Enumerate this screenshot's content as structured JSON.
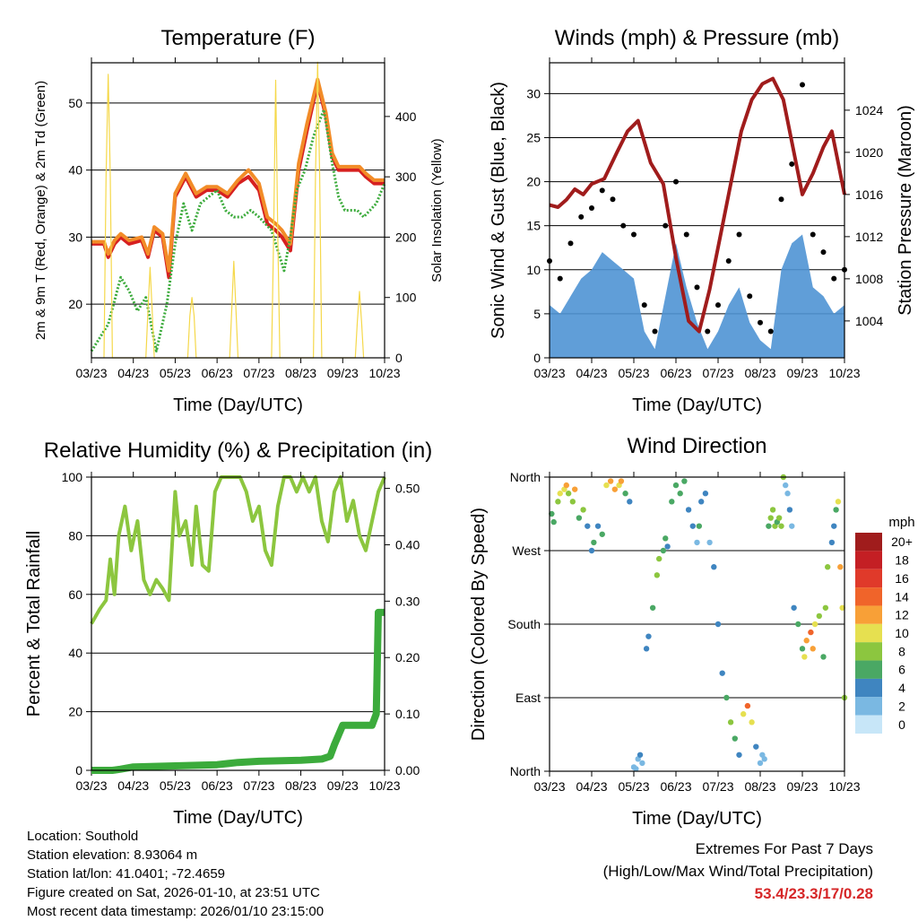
{
  "chart_data": [
    {
      "type": "line",
      "title": "Temperature (F)",
      "xlabel": "Time (Day/UTC)",
      "ylabel": "2m & 9m T (Red, Orange) & 2m Td (Green)",
      "y2label": "Solar Insolation (Yellow)",
      "ylim": [
        12,
        56
      ],
      "y2lim": [
        0,
        489
      ],
      "yticks": [
        20,
        30,
        40,
        50
      ],
      "y2ticks": [
        0,
        100,
        200,
        300,
        400
      ],
      "xlim": [
        0,
        7
      ],
      "xticks": [
        "03/23",
        "04/23",
        "05/23",
        "06/23",
        "07/23",
        "08/23",
        "09/23",
        "10/23"
      ],
      "grid": true,
      "series": [
        {
          "name": "2m T",
          "color": "#d62020",
          "x": [
            0,
            0.3,
            0.4,
            0.55,
            0.7,
            0.9,
            1.2,
            1.35,
            1.5,
            1.7,
            1.85,
            2.0,
            2.25,
            2.5,
            2.75,
            3.0,
            3.25,
            3.5,
            3.75,
            4.0,
            4.2,
            4.4,
            4.55,
            4.75,
            4.95,
            5.15,
            5.4,
            5.6,
            5.75,
            5.9,
            6.05,
            6.25,
            6.4,
            6.55,
            6.75,
            6.9,
            7.0
          ],
          "y": [
            29,
            29,
            27,
            29,
            30,
            29,
            29.5,
            27,
            31,
            30,
            24,
            36,
            39,
            36,
            37,
            37,
            36,
            38,
            39,
            37,
            32,
            31,
            30,
            28,
            40,
            46,
            53,
            48,
            42,
            40,
            40,
            40,
            40,
            39,
            38,
            38,
            38
          ]
        },
        {
          "name": "9m T",
          "color": "#f28c28",
          "x": [
            0,
            0.3,
            0.4,
            0.55,
            0.7,
            0.9,
            1.2,
            1.35,
            1.5,
            1.7,
            1.85,
            2.0,
            2.25,
            2.5,
            2.75,
            3.0,
            3.25,
            3.5,
            3.75,
            4.0,
            4.2,
            4.4,
            4.55,
            4.75,
            4.95,
            5.15,
            5.4,
            5.6,
            5.75,
            5.9,
            6.05,
            6.25,
            6.4,
            6.55,
            6.75,
            6.9,
            7.0
          ],
          "y": [
            29.3,
            29.3,
            27.5,
            29.5,
            30.5,
            29.5,
            30,
            27.5,
            31.5,
            30.5,
            25,
            36.5,
            39.5,
            36.5,
            37.5,
            37.5,
            36.5,
            38.5,
            40,
            38,
            33,
            32,
            31,
            29,
            41,
            47,
            53.5,
            48.5,
            42.5,
            40.5,
            40.5,
            40.5,
            40.5,
            39.5,
            38.5,
            38.5,
            38.5
          ]
        },
        {
          "name": "2m Td",
          "color": "#3cab3c",
          "x": [
            0,
            0.4,
            0.7,
            0.9,
            1.1,
            1.3,
            1.55,
            1.8,
            2.0,
            2.2,
            2.4,
            2.6,
            2.8,
            3.0,
            3.2,
            3.4,
            3.6,
            3.8,
            4.0,
            4.3,
            4.6,
            4.75,
            4.9,
            5.1,
            5.3,
            5.55,
            5.75,
            5.9,
            6.05,
            6.2,
            6.35,
            6.5,
            6.65,
            6.8,
            7.0
          ],
          "y": [
            13,
            17,
            24,
            22,
            19,
            21,
            13,
            20,
            29,
            35,
            31,
            35,
            36,
            37,
            34,
            33,
            33,
            34,
            33,
            31,
            25,
            30,
            37,
            40,
            45,
            49,
            41,
            36,
            34,
            34,
            34,
            33,
            34,
            35,
            38
          ]
        },
        {
          "name": "Solar Insolation",
          "color": "#f5d84a",
          "axis": "right",
          "x": [
            0.3,
            0.35,
            0.4,
            0.45,
            0.5,
            1.3,
            1.35,
            1.4,
            1.45,
            1.5,
            2.3,
            2.35,
            2.4,
            2.45,
            2.5,
            3.3,
            3.35,
            3.4,
            3.45,
            3.5,
            4.3,
            4.35,
            4.4,
            4.45,
            4.5,
            5.3,
            5.35,
            5.4,
            5.45,
            5.5,
            6.3,
            6.35,
            6.4,
            6.45,
            6.5
          ],
          "y": [
            0,
            300,
            470,
            300,
            0,
            0,
            80,
            150,
            80,
            0,
            0,
            70,
            100,
            70,
            0,
            0,
            80,
            160,
            80,
            0,
            0,
            200,
            460,
            200,
            0,
            0,
            300,
            490,
            300,
            0,
            0,
            60,
            110,
            60,
            0
          ]
        }
      ]
    },
    {
      "type": "line",
      "title": "Winds (mph) & Pressure (mb)",
      "xlabel": "Time (Day/UTC)",
      "ylabel": "Sonic Wind & Gust (Blue, Black)",
      "y2label": "Station Pressure (Maroon)",
      "ylim": [
        0,
        33.5
      ],
      "y2lim": [
        1000.5,
        1028.5
      ],
      "yticks": [
        0,
        5,
        10,
        15,
        20,
        25,
        30
      ],
      "y2ticks": [
        1004,
        1008,
        1012,
        1016,
        1020,
        1024
      ],
      "xlim": [
        0,
        7
      ],
      "xticks": [
        "03/23",
        "04/23",
        "05/23",
        "06/23",
        "07/23",
        "08/23",
        "09/23",
        "10/23"
      ],
      "grid": true,
      "series": [
        {
          "name": "Sonic Wind",
          "color": "#4f94d4",
          "x": [
            0,
            0.25,
            0.5,
            0.75,
            1.0,
            1.25,
            1.5,
            1.75,
            2.0,
            2.25,
            2.5,
            2.75,
            3.0,
            3.25,
            3.5,
            3.75,
            4.0,
            4.25,
            4.5,
            4.75,
            5.0,
            5.25,
            5.5,
            5.75,
            6.0,
            6.25,
            6.5,
            6.75,
            7.0
          ],
          "y": [
            6,
            5,
            7,
            9,
            10,
            12,
            11,
            10,
            9,
            3,
            1,
            7,
            13,
            8,
            4,
            1,
            3,
            6,
            8,
            4,
            2,
            1,
            10,
            13,
            14,
            8,
            7,
            5,
            6
          ]
        },
        {
          "name": "Gust",
          "color": "#000000",
          "x": [
            0,
            0.25,
            0.5,
            0.75,
            1.0,
            1.25,
            1.5,
            1.75,
            2.0,
            2.25,
            2.5,
            2.75,
            3.0,
            3.25,
            3.5,
            3.75,
            4.0,
            4.25,
            4.5,
            4.75,
            5.0,
            5.25,
            5.5,
            5.75,
            6.0,
            6.25,
            6.5,
            6.75,
            7.0
          ],
          "y": [
            11,
            9,
            13,
            16,
            17,
            19,
            18,
            15,
            14,
            6,
            3,
            15,
            20,
            14,
            8,
            3,
            6,
            11,
            14,
            7,
            4,
            3,
            18,
            22,
            31,
            14,
            12,
            9,
            10
          ]
        },
        {
          "name": "Station Pressure",
          "color": "#a01c1c",
          "axis": "right",
          "x": [
            0,
            0.2,
            0.4,
            0.6,
            0.8,
            1.0,
            1.3,
            1.6,
            1.85,
            2.1,
            2.4,
            2.7,
            3.0,
            3.3,
            3.55,
            3.8,
            4.05,
            4.3,
            4.55,
            4.8,
            5.05,
            5.3,
            5.55,
            5.8,
            6.0,
            6.25,
            6.5,
            6.7,
            6.85,
            7.0
          ],
          "y": [
            1015,
            1014.8,
            1015.5,
            1016.5,
            1016,
            1017,
            1017.5,
            1020,
            1022,
            1023,
            1019,
            1017,
            1010,
            1004,
            1003,
            1007,
            1012,
            1017,
            1022,
            1025,
            1026.5,
            1027,
            1025,
            1020,
            1016,
            1018,
            1020.5,
            1022,
            1019,
            1016
          ]
        }
      ]
    },
    {
      "type": "line",
      "title": "Relative Humidity (%) & Precipitation (in)",
      "xlabel": "Time (Day/UTC)",
      "ylabel": "Percent & Total Rainfall",
      "ylim": [
        0,
        100
      ],
      "y2lim": [
        0,
        0.52
      ],
      "yticks": [
        0,
        20,
        40,
        60,
        80,
        100
      ],
      "y2ticks": [
        "0.00",
        "0.10",
        "0.20",
        "0.30",
        "0.40",
        "0.50"
      ],
      "xlim": [
        0,
        7
      ],
      "xticks": [
        "03/23",
        "04/23",
        "05/23",
        "06/23",
        "07/23",
        "08/23",
        "09/23",
        "10/23"
      ],
      "grid": true,
      "series": [
        {
          "name": "Relative Humidity",
          "color": "#8cc63f",
          "x": [
            0,
            0.2,
            0.35,
            0.45,
            0.55,
            0.65,
            0.8,
            0.95,
            1.1,
            1.25,
            1.4,
            1.55,
            1.7,
            1.85,
            2.0,
            2.1,
            2.25,
            2.4,
            2.5,
            2.65,
            2.8,
            2.95,
            3.1,
            3.2,
            3.3,
            3.4,
            3.55,
            3.7,
            3.85,
            4.0,
            4.15,
            4.3,
            4.45,
            4.6,
            4.75,
            4.9,
            5.05,
            5.2,
            5.35,
            5.5,
            5.65,
            5.8,
            5.95,
            6.1,
            6.25,
            6.4,
            6.55,
            6.7,
            6.85,
            7.0
          ],
          "y": [
            50,
            55,
            58,
            72,
            60,
            80,
            90,
            75,
            85,
            65,
            60,
            65,
            62,
            58,
            95,
            80,
            85,
            70,
            90,
            70,
            68,
            95,
            100,
            100,
            100,
            100,
            100,
            95,
            85,
            90,
            75,
            70,
            90,
            100,
            100,
            95,
            100,
            95,
            100,
            85,
            78,
            95,
            100,
            85,
            92,
            80,
            75,
            85,
            95,
            100
          ]
        },
        {
          "name": "Total Precipitation",
          "color": "#3cab3c",
          "axis": "right",
          "x": [
            0,
            0.5,
            0.7,
            1.0,
            2.0,
            3.0,
            3.5,
            4.0,
            5.0,
            5.5,
            5.7,
            5.8,
            6.0,
            6.6,
            6.7,
            6.8,
            6.85,
            7.0
          ],
          "y": [
            0,
            0,
            0.002,
            0.006,
            0.008,
            0.01,
            0.014,
            0.016,
            0.018,
            0.02,
            0.025,
            0.045,
            0.08,
            0.08,
            0.08,
            0.1,
            0.28,
            0.28
          ]
        }
      ]
    },
    {
      "type": "scatter",
      "title": "Wind Direction",
      "xlabel": "Time (Day/UTC)",
      "ylabel": "Direction (Colored By Speed)",
      "ylim": [
        0,
        360
      ],
      "yticks": [
        "North",
        "East",
        "South",
        "West",
        "North"
      ],
      "xlim": [
        0,
        7
      ],
      "xticks": [
        "03/23",
        "04/23",
        "05/23",
        "06/23",
        "07/23",
        "08/23",
        "09/23",
        "10/23"
      ],
      "grid": true,
      "colorbar_title": "mph",
      "colorbar_labels": [
        "20+",
        "18",
        "16",
        "14",
        "12",
        "10",
        "8",
        "6",
        "4",
        "2",
        "0"
      ],
      "colorbar_colors": [
        "#a01c1c",
        "#c41f24",
        "#e03a2a",
        "#f0642a",
        "#f8a037",
        "#e6e050",
        "#8cc63f",
        "#4aa864",
        "#3f85c0",
        "#7ab8e2",
        "#c7e6f8"
      ],
      "x": [
        0.05,
        0.1,
        0.2,
        0.25,
        0.35,
        0.4,
        0.45,
        0.55,
        0.6,
        0.7,
        0.8,
        0.9,
        1.0,
        1.05,
        1.15,
        1.25,
        1.35,
        1.45,
        1.55,
        1.65,
        1.7,
        1.8,
        1.9,
        2.0,
        2.05,
        2.1,
        2.15,
        2.2,
        2.3,
        2.35,
        2.45,
        2.55,
        2.6,
        2.7,
        2.75,
        2.8,
        2.9,
        3.0,
        3.1,
        3.2,
        3.3,
        3.4,
        3.5,
        3.55,
        3.6,
        3.7,
        3.8,
        3.9,
        4.0,
        4.1,
        4.2,
        4.3,
        4.4,
        4.5,
        4.6,
        4.7,
        4.8,
        4.9,
        5.0,
        5.05,
        5.1,
        5.2,
        5.25,
        5.3,
        5.35,
        5.4,
        5.45,
        5.5,
        5.55,
        5.6,
        5.65,
        5.7,
        5.75,
        5.8,
        5.9,
        6.0,
        6.05,
        6.1,
        6.2,
        6.25,
        6.3,
        6.4,
        6.5,
        6.55,
        6.6,
        6.7,
        6.75,
        6.8,
        6.85,
        6.9,
        6.95,
        7.0
      ],
      "y": [
        315,
        305,
        330,
        340,
        345,
        350,
        340,
        330,
        345,
        310,
        320,
        300,
        270,
        280,
        300,
        290,
        350,
        355,
        345,
        350,
        355,
        340,
        330,
        5,
        3,
        15,
        20,
        10,
        150,
        165,
        200,
        240,
        260,
        270,
        285,
        275,
        330,
        350,
        340,
        355,
        320,
        300,
        280,
        300,
        330,
        340,
        280,
        250,
        180,
        120,
        90,
        60,
        40,
        20,
        70,
        80,
        60,
        30,
        10,
        20,
        15,
        300,
        310,
        320,
        300,
        305,
        310,
        300,
        360,
        350,
        340,
        320,
        300,
        200,
        180,
        150,
        140,
        160,
        170,
        150,
        180,
        190,
        140,
        200,
        250,
        280,
        300,
        320,
        330,
        250,
        200,
        90
      ],
      "speeds": [
        6,
        5,
        8,
        10,
        9,
        12,
        8,
        7,
        11,
        6,
        8,
        4,
        3,
        5,
        4,
        6,
        10,
        12,
        11,
        9,
        11,
        6,
        3,
        2,
        1,
        2,
        3,
        2,
        4,
        3,
        5,
        7,
        8,
        6,
        5,
        4,
        5,
        6,
        5,
        6,
        4,
        3,
        2,
        5,
        3,
        4,
        2,
        3,
        4,
        3,
        5,
        7,
        6,
        4,
        10,
        14,
        9,
        3,
        1,
        2,
        1,
        6,
        8,
        7,
        8,
        6,
        7,
        8,
        7,
        1,
        2,
        3,
        2,
        3,
        5,
        6,
        9,
        12,
        13,
        11,
        10,
        8,
        6,
        8,
        7,
        4,
        3,
        5,
        9,
        12,
        10,
        8
      ]
    }
  ],
  "footer": {
    "location": "Location: Southold",
    "elevation": "Station elevation: 8.93064 m",
    "latlon": "Station lat/lon: 41.0401; -72.4659",
    "created": "Figure created on Sat, 2026-01-10, at 23:51 UTC",
    "recent": "Most recent data timestamp: 2026/01/10 23:15:00",
    "extremes_title": "Extremes For Past 7 Days",
    "extremes_subtitle": "(High/Low/Max Wind/Total Precipitation)",
    "extremes_values": "53.4/23.3/17/0.28"
  }
}
